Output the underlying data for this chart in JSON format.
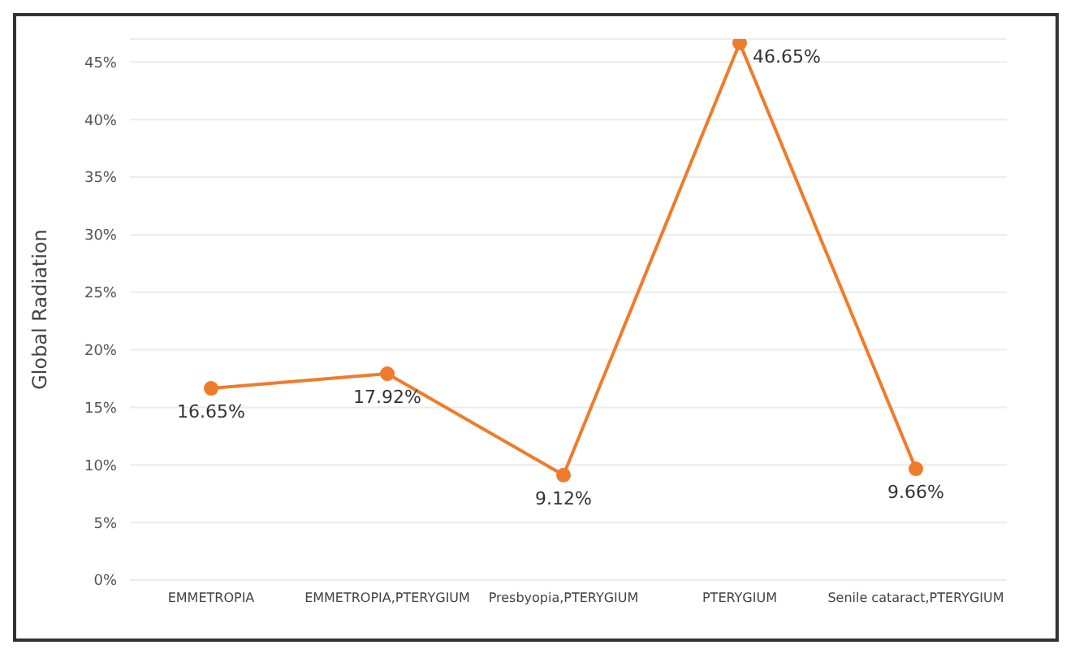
{
  "chart_data": {
    "type": "line",
    "ylabel": "Global Radiation",
    "categories": [
      "EMMETROPIA",
      "EMMETROPIA,PTERYGIUM",
      "Presbyopia,PTERYGIUM",
      "PTERYGIUM",
      "Senile cataract,PTERYGIUM"
    ],
    "series": [
      {
        "color": "#f07b2a",
        "values": [
          16.65,
          17.92,
          9.12,
          46.65,
          9.66
        ],
        "value_labels": [
          "16.65%",
          "17.92%",
          "9.12%",
          "46.65%",
          "9.66%"
        ]
      }
    ],
    "ylim": [
      0,
      47
    ],
    "yticks": [
      {
        "value": 0,
        "label": "0%"
      },
      {
        "value": 5,
        "label": "5%"
      },
      {
        "value": 10,
        "label": "10%"
      },
      {
        "value": 15,
        "label": "15%"
      },
      {
        "value": 20,
        "label": "20%"
      },
      {
        "value": 25,
        "label": "25%"
      },
      {
        "value": 30,
        "label": "30%"
      },
      {
        "value": 35,
        "label": "35%"
      },
      {
        "value": 40,
        "label": "40%"
      },
      {
        "value": 45,
        "label": "45%"
      }
    ],
    "grid": "y",
    "marker": "circle",
    "line_style": "solid",
    "legend": false
  }
}
